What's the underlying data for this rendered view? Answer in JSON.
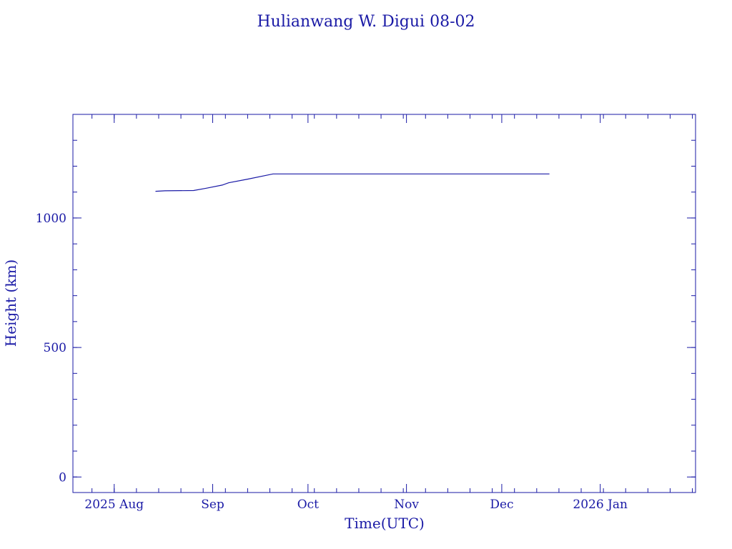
{
  "chart_data": {
    "type": "line",
    "title": "Hulianwang W. Digui 08-02",
    "xlabel": "Time(UTC)",
    "ylabel": "Height (km)",
    "xlim": [
      "2025-07-19",
      "2026-01-31"
    ],
    "ylim": [
      -60,
      1400
    ],
    "x_ticks": [
      {
        "date": "2025-08-01",
        "label": "2025 Aug"
      },
      {
        "date": "2025-09-01",
        "label": "Sep"
      },
      {
        "date": "2025-10-01",
        "label": "Oct"
      },
      {
        "date": "2025-11-01",
        "label": "Nov"
      },
      {
        "date": "2025-12-01",
        "label": "Dec"
      },
      {
        "date": "2026-01-01",
        "label": "2026 Jan"
      }
    ],
    "y_ticks": [
      {
        "value": 0,
        "label": "0"
      },
      {
        "value": 500,
        "label": "500"
      },
      {
        "value": 1000,
        "label": "1000"
      }
    ],
    "y_minor_step": 100,
    "grid": false,
    "series": [
      {
        "color": "#1a1aa6",
        "points": [
          {
            "x": "2025-08-14",
            "y": 1103
          },
          {
            "x": "2025-08-17",
            "y": 1105
          },
          {
            "x": "2025-08-26",
            "y": 1106
          },
          {
            "x": "2025-08-30",
            "y": 1115
          },
          {
            "x": "2025-09-04",
            "y": 1127
          },
          {
            "x": "2025-09-06",
            "y": 1136
          },
          {
            "x": "2025-09-12",
            "y": 1150
          },
          {
            "x": "2025-09-20",
            "y": 1170
          },
          {
            "x": "2025-12-16",
            "y": 1170
          }
        ]
      }
    ]
  }
}
